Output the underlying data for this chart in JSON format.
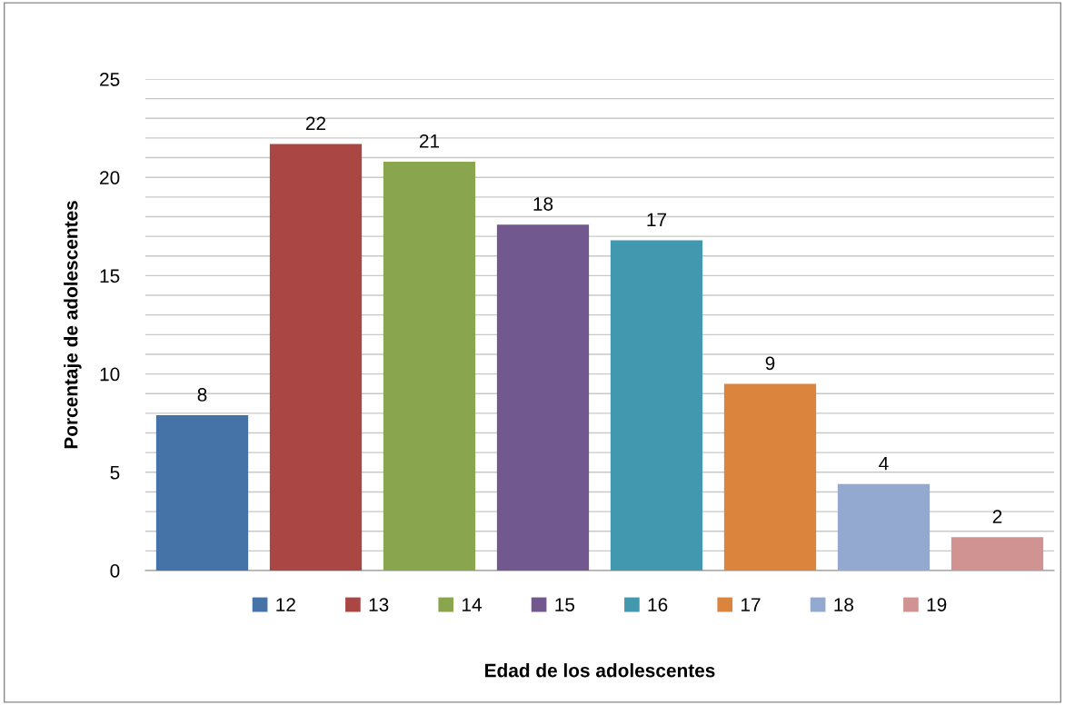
{
  "chart_data": {
    "type": "bar",
    "xlabel": "Edad de los adolescentes",
    "ylabel": "Porcentaje de adolescentes",
    "categories": [
      null
    ],
    "series": [
      {
        "name": "12",
        "color": "#4572a7",
        "values": [
          7.9
        ],
        "value_labels": [
          "8"
        ]
      },
      {
        "name": "13",
        "color": "#aa4643",
        "values": [
          21.7
        ],
        "value_labels": [
          "22"
        ]
      },
      {
        "name": "14",
        "color": "#89a54e",
        "values": [
          20.8
        ],
        "value_labels": [
          "21"
        ]
      },
      {
        "name": "15",
        "color": "#71588f",
        "values": [
          17.6
        ],
        "value_labels": [
          "18"
        ]
      },
      {
        "name": "16",
        "color": "#4198af",
        "values": [
          16.8
        ],
        "value_labels": [
          "17"
        ]
      },
      {
        "name": "17",
        "color": "#db843d",
        "values": [
          9.5
        ],
        "value_labels": [
          "9"
        ]
      },
      {
        "name": "18",
        "color": "#93a9cf",
        "values": [
          4.4
        ],
        "value_labels": [
          "4"
        ]
      },
      {
        "name": "19",
        "color": "#d19392",
        "values": [
          1.7
        ],
        "value_labels": [
          "2"
        ]
      }
    ],
    "ylim": [
      0,
      25
    ],
    "yticks": [
      0,
      {
        "value": 1,
        "label": null
      },
      {
        "value": 2,
        "label": null
      },
      {
        "value": 3,
        "label": null
      },
      {
        "value": 4,
        "label": null
      },
      5,
      {
        "value": 6,
        "label": null
      },
      {
        "value": 7,
        "label": null
      },
      {
        "value": 8,
        "label": null
      },
      {
        "value": 9,
        "label": null
      },
      10,
      {
        "value": 11,
        "label": null
      },
      {
        "value": 12,
        "label": null
      },
      {
        "value": 13,
        "label": null
      },
      {
        "value": 14,
        "label": null
      },
      15,
      {
        "value": 16,
        "label": null
      },
      {
        "value": 17,
        "label": null
      },
      {
        "value": 18,
        "label": null
      },
      {
        "value": 19,
        "label": null
      },
      20,
      {
        "value": 21,
        "label": null
      },
      {
        "value": 22,
        "label": null
      },
      {
        "value": 23,
        "label": null
      },
      {
        "value": 24,
        "label": null
      },
      25
    ],
    "grid": "y",
    "legend": "bottom"
  }
}
